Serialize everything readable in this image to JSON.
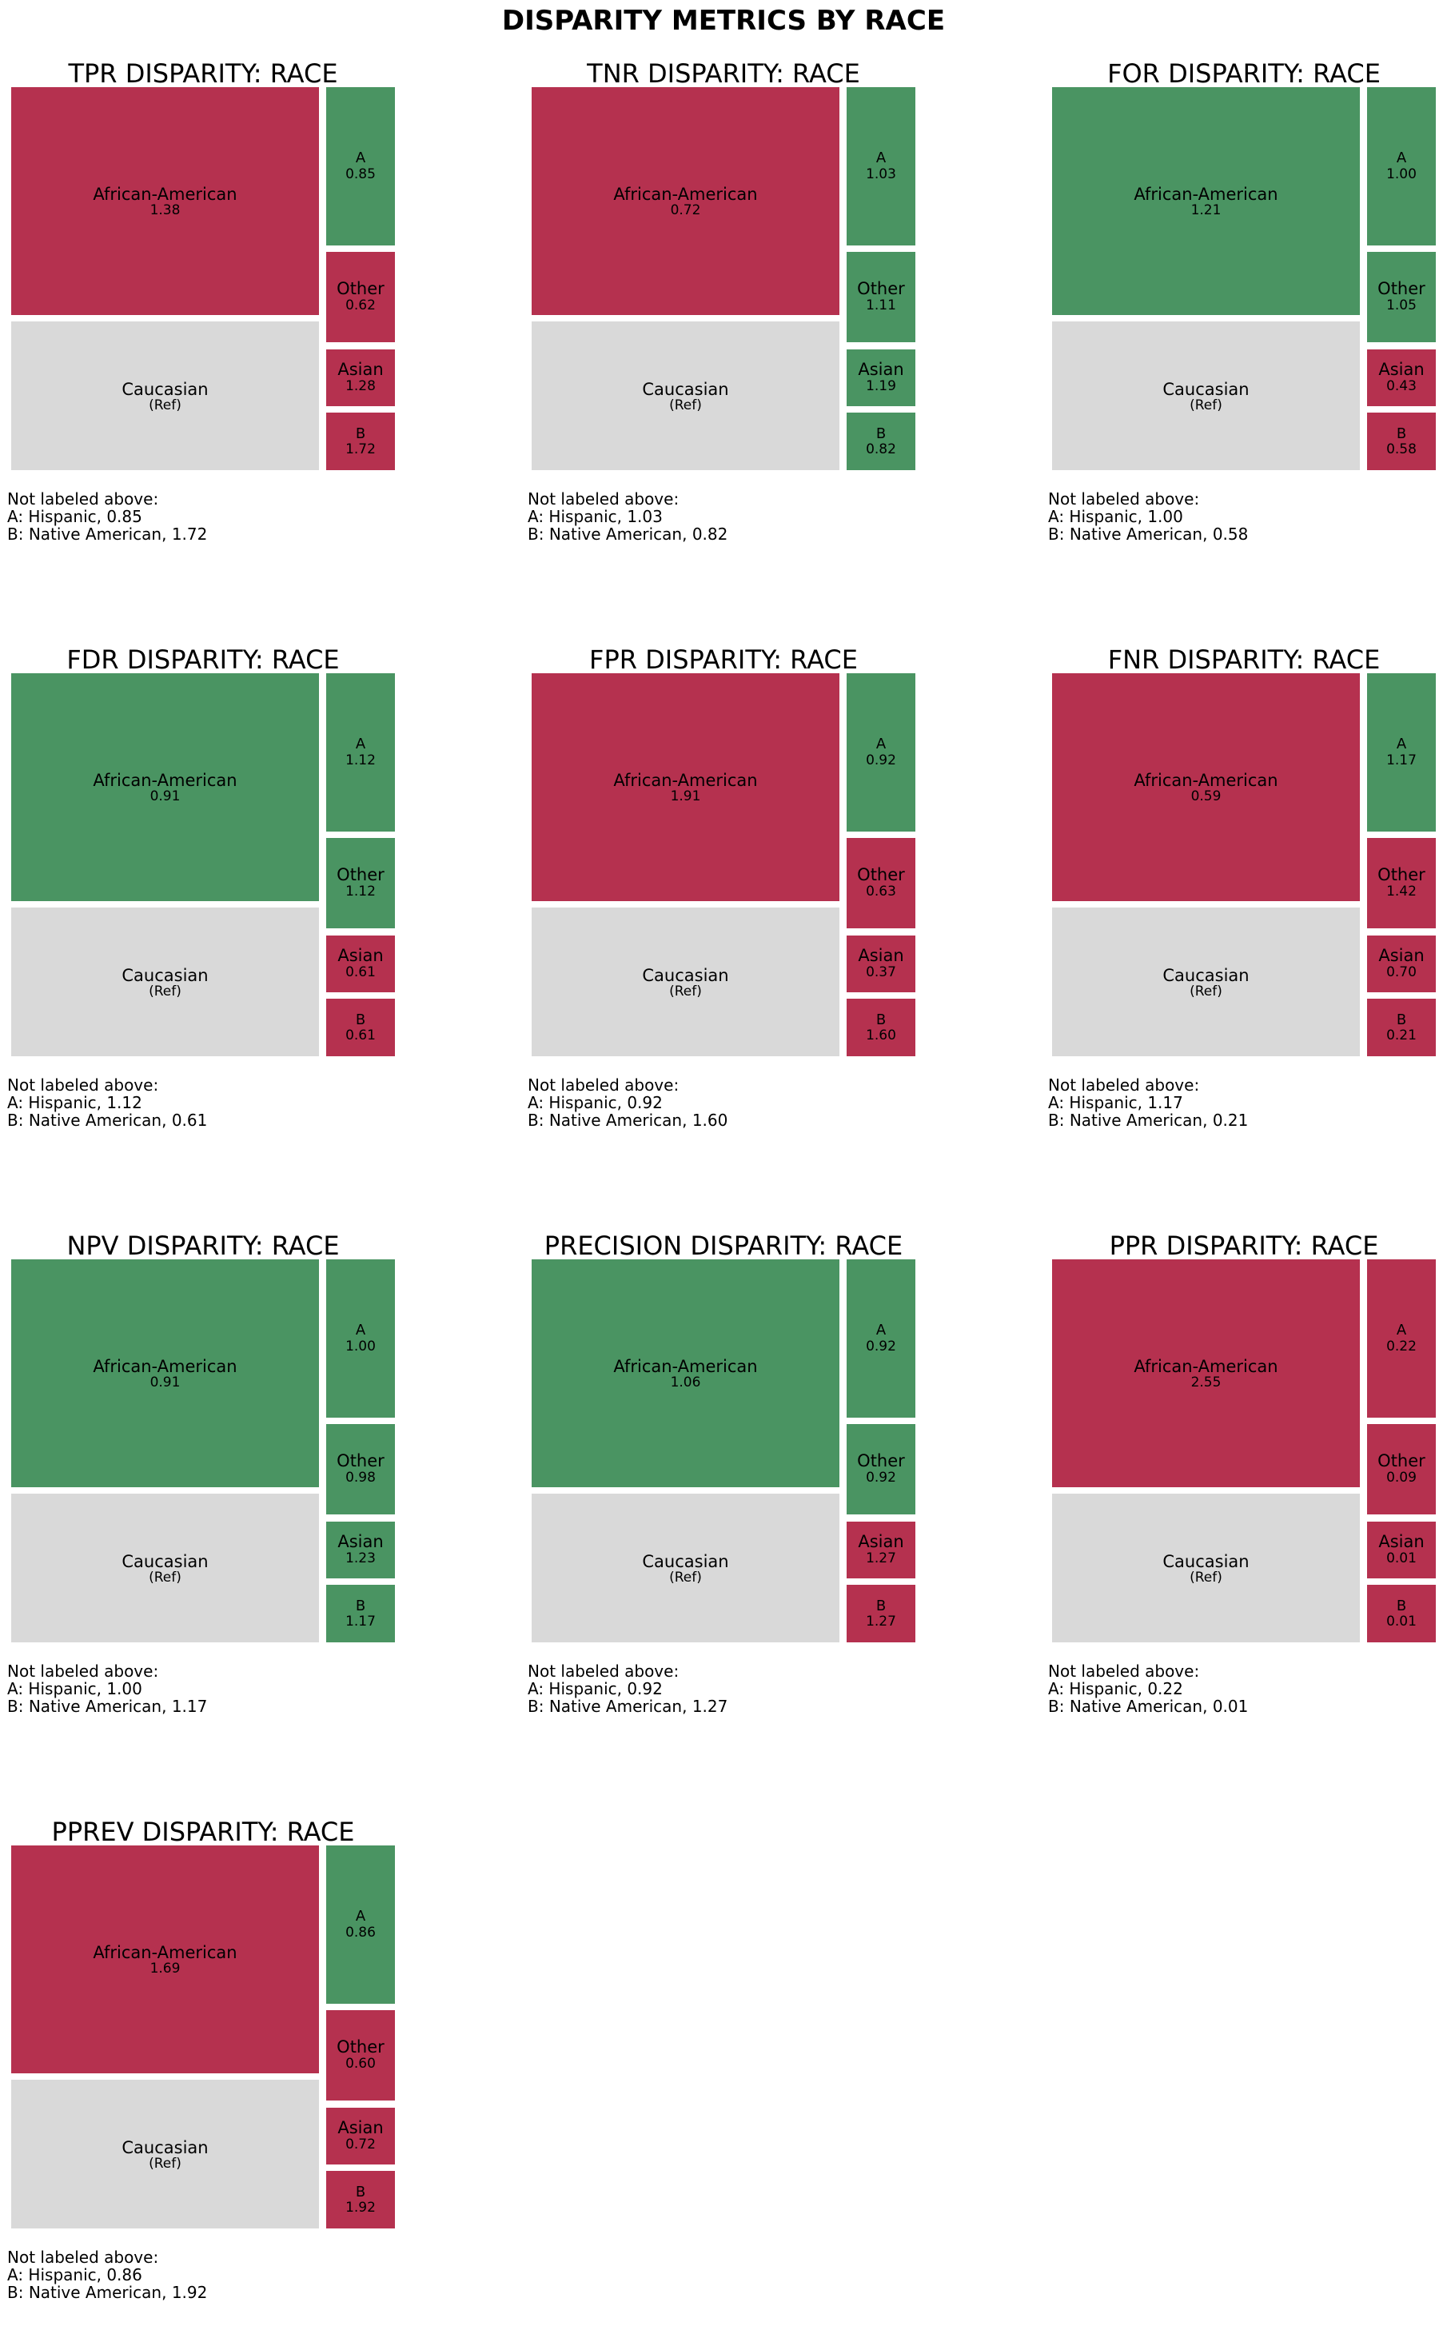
{
  "title": "DISPARITY METRICS BY RACE",
  "colors": {
    "above": "#b5314f",
    "below": "#4a9462",
    "reference": "#d9d9d9"
  },
  "note_header": "Not labeled above:",
  "chart_data": [
    {
      "type": "treemap",
      "title": "TPR DISPARITY: RACE",
      "groups": [
        {
          "label": "African-American",
          "value": "1.38",
          "status": "above"
        },
        {
          "label": "Caucasian",
          "value": "(Ref)",
          "status": "reference"
        },
        {
          "label": "A",
          "value": "0.85",
          "status": "below"
        },
        {
          "label": "Other",
          "value": "0.62",
          "status": "above"
        },
        {
          "label": "Asian",
          "value": "1.28",
          "status": "above"
        },
        {
          "label": "B",
          "value": "1.72",
          "status": "above"
        }
      ],
      "notes": [
        "A: Hispanic, 0.85",
        "B: Native American, 1.72"
      ]
    },
    {
      "type": "treemap",
      "title": "TNR DISPARITY: RACE",
      "groups": [
        {
          "label": "African-American",
          "value": "0.72",
          "status": "above"
        },
        {
          "label": "Caucasian",
          "value": "(Ref)",
          "status": "reference"
        },
        {
          "label": "A",
          "value": "1.03",
          "status": "below"
        },
        {
          "label": "Other",
          "value": "1.11",
          "status": "below"
        },
        {
          "label": "Asian",
          "value": "1.19",
          "status": "below"
        },
        {
          "label": "B",
          "value": "0.82",
          "status": "below"
        }
      ],
      "notes": [
        "A: Hispanic, 1.03",
        "B: Native American, 0.82"
      ]
    },
    {
      "type": "treemap",
      "title": "FOR DISPARITY: RACE",
      "groups": [
        {
          "label": "African-American",
          "value": "1.21",
          "status": "below"
        },
        {
          "label": "Caucasian",
          "value": "(Ref)",
          "status": "reference"
        },
        {
          "label": "A",
          "value": "1.00",
          "status": "below"
        },
        {
          "label": "Other",
          "value": "1.05",
          "status": "below"
        },
        {
          "label": "Asian",
          "value": "0.43",
          "status": "above"
        },
        {
          "label": "B",
          "value": "0.58",
          "status": "above"
        }
      ],
      "notes": [
        "A: Hispanic, 1.00",
        "B: Native American, 0.58"
      ]
    },
    {
      "type": "treemap",
      "title": "FDR DISPARITY: RACE",
      "groups": [
        {
          "label": "African-American",
          "value": "0.91",
          "status": "below"
        },
        {
          "label": "Caucasian",
          "value": "(Ref)",
          "status": "reference"
        },
        {
          "label": "A",
          "value": "1.12",
          "status": "below"
        },
        {
          "label": "Other",
          "value": "1.12",
          "status": "below"
        },
        {
          "label": "Asian",
          "value": "0.61",
          "status": "above"
        },
        {
          "label": "B",
          "value": "0.61",
          "status": "above"
        }
      ],
      "notes": [
        "A: Hispanic, 1.12",
        "B: Native American, 0.61"
      ]
    },
    {
      "type": "treemap",
      "title": "FPR DISPARITY: RACE",
      "groups": [
        {
          "label": "African-American",
          "value": "1.91",
          "status": "above"
        },
        {
          "label": "Caucasian",
          "value": "(Ref)",
          "status": "reference"
        },
        {
          "label": "A",
          "value": "0.92",
          "status": "below"
        },
        {
          "label": "Other",
          "value": "0.63",
          "status": "above"
        },
        {
          "label": "Asian",
          "value": "0.37",
          "status": "above"
        },
        {
          "label": "B",
          "value": "1.60",
          "status": "above"
        }
      ],
      "notes": [
        "A: Hispanic, 0.92",
        "B: Native American, 1.60"
      ]
    },
    {
      "type": "treemap",
      "title": "FNR DISPARITY: RACE",
      "groups": [
        {
          "label": "African-American",
          "value": "0.59",
          "status": "above"
        },
        {
          "label": "Caucasian",
          "value": "(Ref)",
          "status": "reference"
        },
        {
          "label": "A",
          "value": "1.17",
          "status": "below"
        },
        {
          "label": "Other",
          "value": "1.42",
          "status": "above"
        },
        {
          "label": "Asian",
          "value": "0.70",
          "status": "above"
        },
        {
          "label": "B",
          "value": "0.21",
          "status": "above"
        }
      ],
      "notes": [
        "A: Hispanic, 1.17",
        "B: Native American, 0.21"
      ]
    },
    {
      "type": "treemap",
      "title": "NPV DISPARITY: RACE",
      "groups": [
        {
          "label": "African-American",
          "value": "0.91",
          "status": "below"
        },
        {
          "label": "Caucasian",
          "value": "(Ref)",
          "status": "reference"
        },
        {
          "label": "A",
          "value": "1.00",
          "status": "below"
        },
        {
          "label": "Other",
          "value": "0.98",
          "status": "below"
        },
        {
          "label": "Asian",
          "value": "1.23",
          "status": "below"
        },
        {
          "label": "B",
          "value": "1.17",
          "status": "below"
        }
      ],
      "notes": [
        "A: Hispanic, 1.00",
        "B: Native American, 1.17"
      ]
    },
    {
      "type": "treemap",
      "title": "PRECISION DISPARITY: RACE",
      "groups": [
        {
          "label": "African-American",
          "value": "1.06",
          "status": "below"
        },
        {
          "label": "Caucasian",
          "value": "(Ref)",
          "status": "reference"
        },
        {
          "label": "A",
          "value": "0.92",
          "status": "below"
        },
        {
          "label": "Other",
          "value": "0.92",
          "status": "below"
        },
        {
          "label": "Asian",
          "value": "1.27",
          "status": "above"
        },
        {
          "label": "B",
          "value": "1.27",
          "status": "above"
        }
      ],
      "notes": [
        "A: Hispanic, 0.92",
        "B: Native American, 1.27"
      ]
    },
    {
      "type": "treemap",
      "title": "PPR DISPARITY: RACE",
      "groups": [
        {
          "label": "African-American",
          "value": "2.55",
          "status": "above"
        },
        {
          "label": "Caucasian",
          "value": "(Ref)",
          "status": "reference"
        },
        {
          "label": "A",
          "value": "0.22",
          "status": "above"
        },
        {
          "label": "Other",
          "value": "0.09",
          "status": "above"
        },
        {
          "label": "Asian",
          "value": "0.01",
          "status": "above"
        },
        {
          "label": "B",
          "value": "0.01",
          "status": "above"
        }
      ],
      "notes": [
        "A: Hispanic, 0.22",
        "B: Native American, 0.01"
      ]
    },
    {
      "type": "treemap",
      "title": "PPREV DISPARITY: RACE",
      "groups": [
        {
          "label": "African-American",
          "value": "1.69",
          "status": "above"
        },
        {
          "label": "Caucasian",
          "value": "(Ref)",
          "status": "reference"
        },
        {
          "label": "A",
          "value": "0.86",
          "status": "below"
        },
        {
          "label": "Other",
          "value": "0.60",
          "status": "above"
        },
        {
          "label": "Asian",
          "value": "0.72",
          "status": "above"
        },
        {
          "label": "B",
          "value": "1.92",
          "status": "above"
        }
      ],
      "notes": [
        "A: Hispanic, 0.86",
        "B: Native American, 1.92"
      ]
    }
  ]
}
